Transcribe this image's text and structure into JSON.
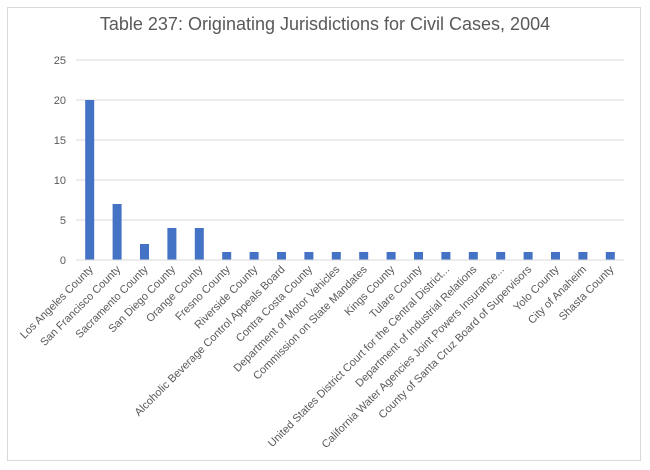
{
  "chart_data": {
    "type": "bar",
    "title": "Table 237: Originating Jurisdictions for Civil Cases, 2004",
    "categories": [
      "Los Angeles County",
      "San Francisco County",
      "Sacramento County",
      "San Diego County",
      "Orange County",
      "Fresno County",
      "Riverside County",
      "Alcoholic Beverage Control Appeals Board",
      "Contra Costa County",
      "Department of Motor Vehicles",
      "Commission on State Mandates",
      "Kings County",
      "Tulare County",
      "United States District Court for the Central District...",
      "Department of Industrial Relations",
      "California Water Agencies Joint Powers Insurance...",
      "County of Santa Cruz Board of Supervisors",
      "Yolo County",
      "City of Anaheim",
      "Shasta County"
    ],
    "values": [
      20,
      7,
      2,
      4,
      4,
      1,
      1,
      1,
      1,
      1,
      1,
      1,
      1,
      1,
      1,
      1,
      1,
      1,
      1,
      1
    ],
    "ylim": [
      0,
      25
    ],
    "yticks": [
      "0",
      "5",
      "10",
      "15",
      "20",
      "25"
    ],
    "grid": true,
    "legend": "none",
    "bar_color": "#4472c4",
    "grid_color": "#d9d9d9"
  }
}
